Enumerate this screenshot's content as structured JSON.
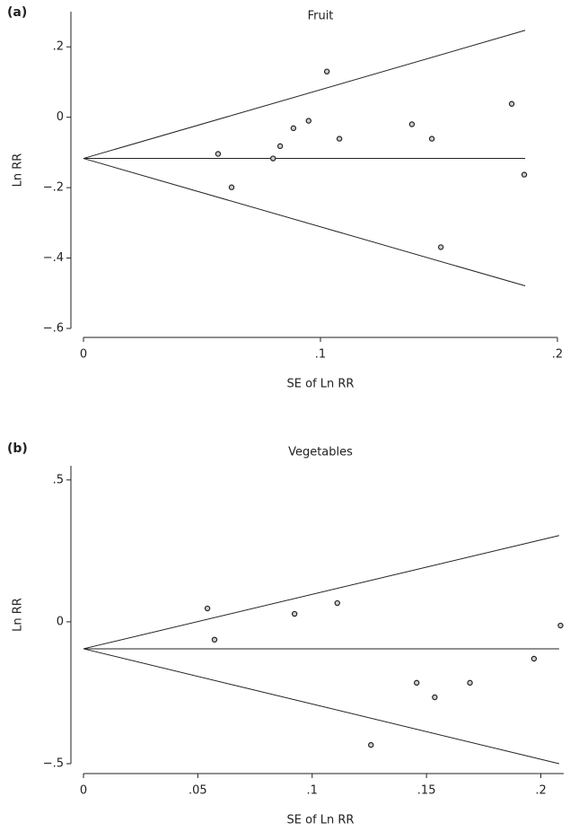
{
  "chart_data": [
    {
      "type": "scatter",
      "panel": "(a)",
      "title": "Fruit",
      "x_label": "SE of Ln RR",
      "y_label": "Ln RR",
      "x": [
        0.0568,
        0.0625,
        0.08,
        0.083,
        0.0886,
        0.095,
        0.1027,
        0.108,
        0.1386,
        0.147,
        0.1508,
        0.1807,
        0.186
      ],
      "values": [
        -0.104,
        -0.199,
        -0.117,
        -0.082,
        -0.031,
        -0.01,
        0.13,
        -0.061,
        -0.02,
        -0.061,
        -0.369,
        0.038,
        -0.163
      ],
      "funnel": {
        "x": [
          0,
          0.1864
        ],
        "center": -0.117,
        "upper": 0.247,
        "lower": -0.479
      },
      "xlim": [
        0,
        0.2
      ],
      "ylim": [
        -0.6,
        0.3
      ],
      "xticks": [
        0,
        {
          "value": 0.1,
          "label": ".1"
        },
        {
          "value": 0.2,
          "label": ".2"
        }
      ],
      "yticks": [
        {
          "value": -0.6,
          "label": "−.6"
        },
        {
          "value": -0.4,
          "label": "−.4"
        },
        {
          "value": -0.2,
          "label": "−.2"
        },
        0,
        {
          "value": 0.2,
          "label": ".2"
        }
      ]
    },
    {
      "type": "scatter",
      "panel": "(b)",
      "title": "Vegetables",
      "x_label": "SE of Ln RR",
      "y_label": "Ln RR",
      "x": [
        0.0542,
        0.0573,
        0.0923,
        0.111,
        0.1257,
        0.1457,
        0.1536,
        0.169,
        0.197,
        0.2086
      ],
      "values": [
        0.047,
        -0.063,
        0.028,
        0.066,
        -0.434,
        -0.215,
        -0.266,
        -0.215,
        -0.13,
        -0.013
      ],
      "funnel": {
        "x": [
          0,
          0.208
        ],
        "center": -0.095,
        "upper": 0.304,
        "lower": -0.5
      },
      "xlim": [
        0,
        0.21
      ],
      "ylim": [
        -0.5,
        0.55
      ],
      "xticks": [
        0,
        {
          "value": 0.05,
          "label": ".05"
        },
        {
          "value": 0.1,
          "label": ".1"
        },
        {
          "value": 0.15,
          "label": ".15"
        },
        {
          "value": 0.2,
          "label": ".2"
        }
      ],
      "yticks": [
        {
          "value": -0.5,
          "label": "−.5"
        },
        0,
        {
          "value": 0.5,
          "label": ".5"
        }
      ]
    }
  ]
}
